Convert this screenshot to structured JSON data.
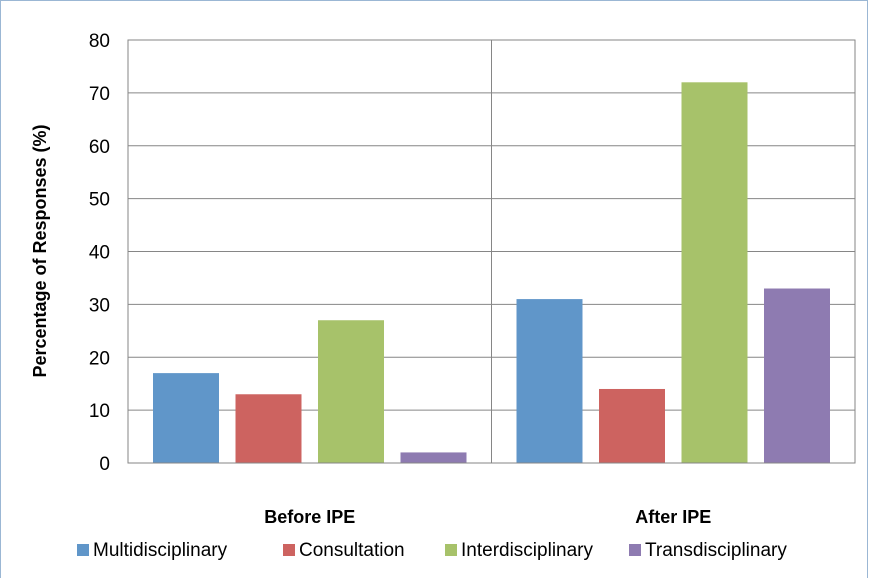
{
  "chart_data": {
    "type": "bar",
    "categories": [
      "Before IPE",
      "After IPE"
    ],
    "series": [
      {
        "name": "Multidisciplinary",
        "values": [
          17,
          31
        ],
        "color": "#6096c9"
      },
      {
        "name": "Consultation",
        "values": [
          13,
          14
        ],
        "color": "#cd6360"
      },
      {
        "name": "Interdisciplinary",
        "values": [
          27,
          72
        ],
        "color": "#a7c26a"
      },
      {
        "name": "Transdisciplinary",
        "values": [
          2,
          33
        ],
        "color": "#8e7bb1"
      }
    ],
    "title": "",
    "xlabel": "",
    "ylabel": "Percentage of Responses (%)",
    "ylim": [
      0,
      80
    ],
    "yticks": [
      0,
      10,
      20,
      30,
      40,
      50,
      60,
      70,
      80
    ],
    "grid": true,
    "legend": "bottom"
  }
}
